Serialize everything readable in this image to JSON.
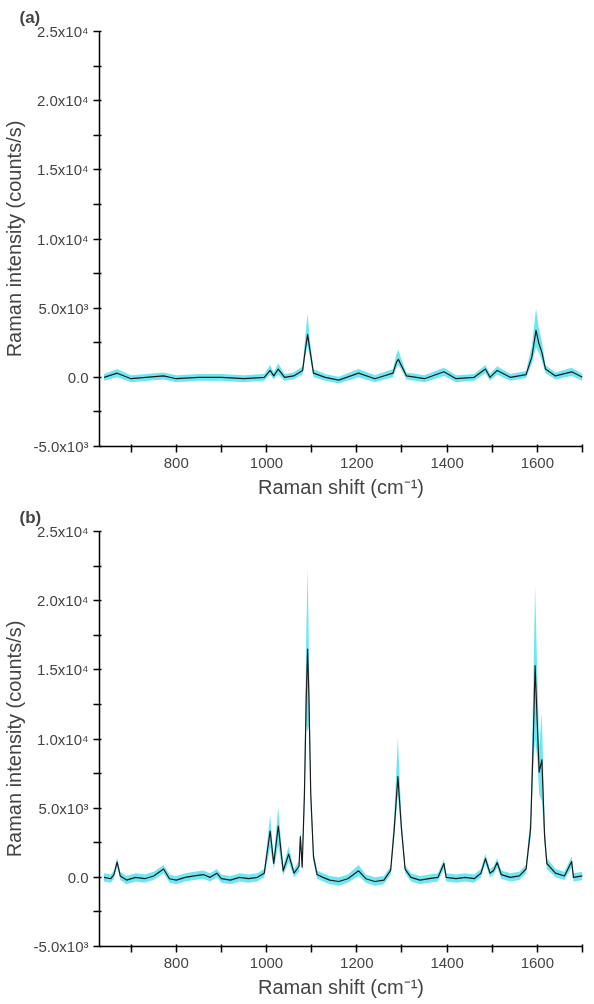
{
  "chart_data": [
    {
      "type": "line",
      "title": "(a)",
      "xlabel": "Raman shift (cm⁻¹)",
      "ylabel": "Raman intensity (counts/s)",
      "xlim": [
        630,
        1700
      ],
      "xticks": [
        {
          "value": 700,
          "label": null
        },
        800,
        {
          "value": 900,
          "label": null
        },
        1000,
        {
          "value": 1100,
          "label": null
        },
        1200,
        {
          "value": 1300,
          "label": null
        },
        1400,
        {
          "value": 1500,
          "label": null
        },
        1600,
        {
          "value": 1700,
          "label": null
        }
      ],
      "ylim": [
        -5000,
        25000
      ],
      "yticks": [
        {
          "value": -5000,
          "label": "-5.0x10³"
        },
        {
          "value": -2500,
          "label": null
        },
        {
          "value": 0,
          "label": "0.0"
        },
        {
          "value": 2500,
          "label": null
        },
        {
          "value": 5000,
          "label": "5.0x10³"
        },
        {
          "value": 7500,
          "label": null
        },
        {
          "value": 10000,
          "label": "1.0x10⁴"
        },
        {
          "value": 12500,
          "label": null
        },
        {
          "value": 15000,
          "label": "1.5x10⁴"
        },
        {
          "value": 17500,
          "label": null
        },
        {
          "value": 20000,
          "label": "2.0x10⁴"
        },
        {
          "value": 22500,
          "label": null
        },
        {
          "value": 25000,
          "label": "2.5x10⁴"
        }
      ],
      "grid": false,
      "marker": "none",
      "line_style": "solid",
      "series": [
        {
          "color": "#1a1a1a",
          "x": [
            640,
            669,
            700,
            772,
            800,
            850,
            900,
            950,
            995,
            1008,
            1016,
            1026,
            1040,
            1060,
            1080,
            1086,
            1091,
            1096,
            1104,
            1130,
            1160,
            1204,
            1240,
            1280,
            1288,
            1292,
            1298,
            1310,
            1350,
            1393,
            1420,
            1460,
            1485,
            1495,
            1511,
            1540,
            1575,
            1588,
            1597,
            1603,
            1610,
            1618,
            1640,
            1676,
            1700
          ],
          "values": [
            0,
            300,
            -100,
            100,
            -100,
            0,
            0,
            -100,
            0,
            500,
            100,
            600,
            0,
            100,
            500,
            2000,
            3100,
            2000,
            300,
            0,
            -200,
            300,
            -100,
            300,
            1100,
            1300,
            900,
            100,
            -100,
            400,
            -100,
            0,
            600,
            0,
            500,
            0,
            200,
            1500,
            3400,
            2500,
            1800,
            600,
            100,
            400,
            0
          ],
          "lower": [
            -250,
            0,
            -350,
            -150,
            -350,
            -250,
            -250,
            -350,
            -250,
            200,
            -150,
            200,
            -250,
            -150,
            200,
            1500,
            2300,
            1500,
            0,
            -250,
            -450,
            0,
            -350,
            0,
            700,
            900,
            600,
            -150,
            -350,
            100,
            -350,
            -250,
            300,
            -250,
            200,
            -250,
            -50,
            1000,
            2200,
            1800,
            1200,
            300,
            -150,
            100,
            -250
          ],
          "upper": [
            250,
            600,
            150,
            350,
            150,
            250,
            250,
            150,
            250,
            900,
            350,
            1000,
            250,
            350,
            800,
            3000,
            4600,
            2800,
            600,
            250,
            50,
            600,
            150,
            600,
            1700,
            2000,
            1400,
            350,
            150,
            700,
            150,
            250,
            900,
            250,
            800,
            250,
            450,
            2300,
            5000,
            3600,
            2600,
            900,
            350,
            700,
            250
          ]
        }
      ]
    },
    {
      "type": "line",
      "title": "(b)",
      "xlabel": "Raman shift (cm⁻¹)",
      "ylabel": "Raman intensity (counts/s)",
      "xlim": [
        630,
        1700
      ],
      "xticks": [
        {
          "value": 700,
          "label": null
        },
        800,
        {
          "value": 900,
          "label": null
        },
        1000,
        {
          "value": 1100,
          "label": null
        },
        1200,
        {
          "value": 1300,
          "label": null
        },
        1400,
        {
          "value": 1500,
          "label": null
        },
        1600,
        {
          "value": 1700,
          "label": null
        }
      ],
      "ylim": [
        -5000,
        25000
      ],
      "yticks": [
        {
          "value": -5000,
          "label": "-5.0x10³"
        },
        {
          "value": -2500,
          "label": null
        },
        {
          "value": 0,
          "label": "0.0"
        },
        {
          "value": 2500,
          "label": null
        },
        {
          "value": 5000,
          "label": "5.0x10³"
        },
        {
          "value": 7500,
          "label": null
        },
        {
          "value": 10000,
          "label": "1.0x10⁴"
        },
        {
          "value": 12500,
          "label": null
        },
        {
          "value": 15000,
          "label": "1.5x10⁴"
        },
        {
          "value": 17500,
          "label": null
        },
        {
          "value": 20000,
          "label": "2.0x10⁴"
        },
        {
          "value": 22500,
          "label": null
        },
        {
          "value": 25000,
          "label": "2.5x10⁴"
        }
      ],
      "grid": false,
      "marker": "none",
      "line_style": "solid",
      "series": [
        {
          "color": "#1a1a1a",
          "x": [
            640,
            655,
            662,
            669,
            676,
            690,
            710,
            730,
            750,
            772,
            785,
            800,
            820,
            840,
            860,
            875,
            890,
            900,
            920,
            940,
            960,
            980,
            995,
            1008,
            1016,
            1026,
            1037,
            1049,
            1061,
            1072,
            1075,
            1079,
            1084,
            1088,
            1091,
            1094,
            1098,
            1104,
            1112,
            1125,
            1140,
            1160,
            1180,
            1204,
            1220,
            1240,
            1260,
            1275,
            1283,
            1291,
            1299,
            1307,
            1320,
            1340,
            1360,
            1380,
            1393,
            1398,
            1420,
            1440,
            1460,
            1475,
            1485,
            1495,
            1503,
            1511,
            1520,
            1540,
            1560,
            1575,
            1585,
            1591,
            1595,
            1600,
            1604,
            1610,
            1616,
            1621,
            1640,
            1660,
            1676,
            1680,
            1700
          ],
          "values": [
            0,
            -100,
            200,
            1100,
            100,
            -200,
            0,
            -100,
            100,
            600,
            -100,
            -200,
            0,
            100,
            200,
            0,
            300,
            -100,
            -200,
            0,
            -100,
            0,
            300,
            3350,
            1000,
            3700,
            470,
            1680,
            300,
            800,
            2950,
            740,
            6000,
            13000,
            16500,
            13000,
            6000,
            1500,
            200,
            0,
            -200,
            -300,
            -100,
            470,
            -100,
            -300,
            -200,
            500,
            3500,
            7290,
            3500,
            600,
            0,
            -200,
            -100,
            0,
            1000,
            0,
            -100,
            0,
            -100,
            300,
            1350,
            300,
            500,
            1070,
            200,
            0,
            100,
            600,
            3500,
            10000,
            15300,
            11000,
            7600,
            8500,
            3000,
            1000,
            300,
            100,
            1150,
            0,
            100
          ],
          "lower": [
            -300,
            -400,
            -100,
            800,
            -200,
            -500,
            -300,
            -400,
            -200,
            300,
            -400,
            -500,
            -300,
            -200,
            -100,
            -300,
            0,
            -400,
            -500,
            -300,
            -400,
            -300,
            0,
            2200,
            600,
            2300,
            150,
            1100,
            0,
            400,
            2400,
            400,
            5000,
            11000,
            10500,
            11000,
            5000,
            1100,
            -100,
            -300,
            -500,
            -600,
            -400,
            100,
            -400,
            -600,
            -500,
            200,
            3000,
            6000,
            3000,
            300,
            -300,
            -500,
            -400,
            -300,
            600,
            -300,
            -400,
            -300,
            -400,
            0,
            1000,
            0,
            200,
            700,
            -100,
            -300,
            -200,
            300,
            2800,
            8000,
            10000,
            8500,
            6000,
            5500,
            2400,
            600,
            0,
            -200,
            700,
            -300,
            -200
          ],
          "upper": [
            300,
            200,
            500,
            1430,
            400,
            100,
            300,
            200,
            400,
            900,
            200,
            100,
            300,
            400,
            500,
            300,
            600,
            200,
            100,
            300,
            200,
            300,
            600,
            4500,
            1400,
            5100,
            800,
            2250,
            600,
            1200,
            3500,
            1100,
            8000,
            17500,
            22400,
            16500,
            7000,
            1900,
            500,
            300,
            100,
            0,
            200,
            900,
            200,
            0,
            100,
            800,
            4500,
            10100,
            4200,
            900,
            300,
            100,
            200,
            300,
            1300,
            300,
            200,
            300,
            200,
            600,
            1700,
            600,
            800,
            1400,
            500,
            300,
            400,
            900,
            4500,
            14000,
            21100,
            14500,
            9500,
            11900,
            3800,
            1400,
            600,
            400,
            1500,
            300,
            400
          ]
        }
      ]
    }
  ]
}
